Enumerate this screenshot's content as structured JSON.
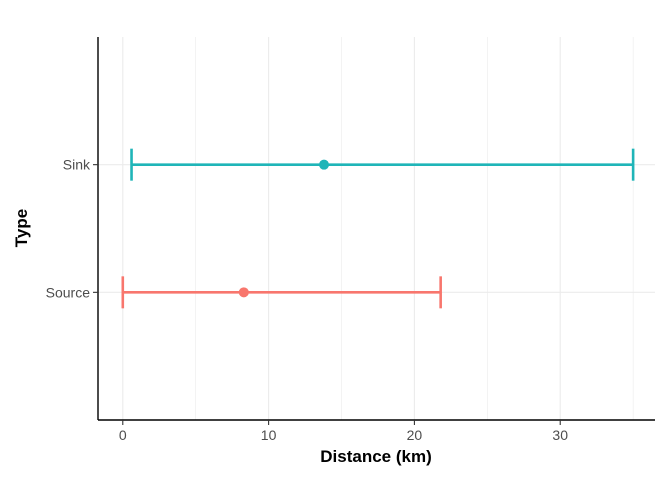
{
  "chart_data": {
    "type": "errorbar",
    "xlabel": "Distance (km)",
    "ylabel": "Type",
    "xlim": [
      -1.7,
      36.5
    ],
    "x_ticks": [
      "0",
      "10",
      "20",
      "30"
    ],
    "x_tick_values": [
      0,
      10,
      20,
      30
    ],
    "categories": [
      "Source",
      "Sink"
    ],
    "grid": true,
    "legend": "none",
    "series": [
      {
        "category": "Source",
        "center": 8.3,
        "low": 0.0,
        "high": 21.8,
        "color": "#F8766D"
      },
      {
        "category": "Sink",
        "center": 13.8,
        "low": 0.6,
        "high": 35.0,
        "color": "#1FB5B8"
      }
    ]
  }
}
